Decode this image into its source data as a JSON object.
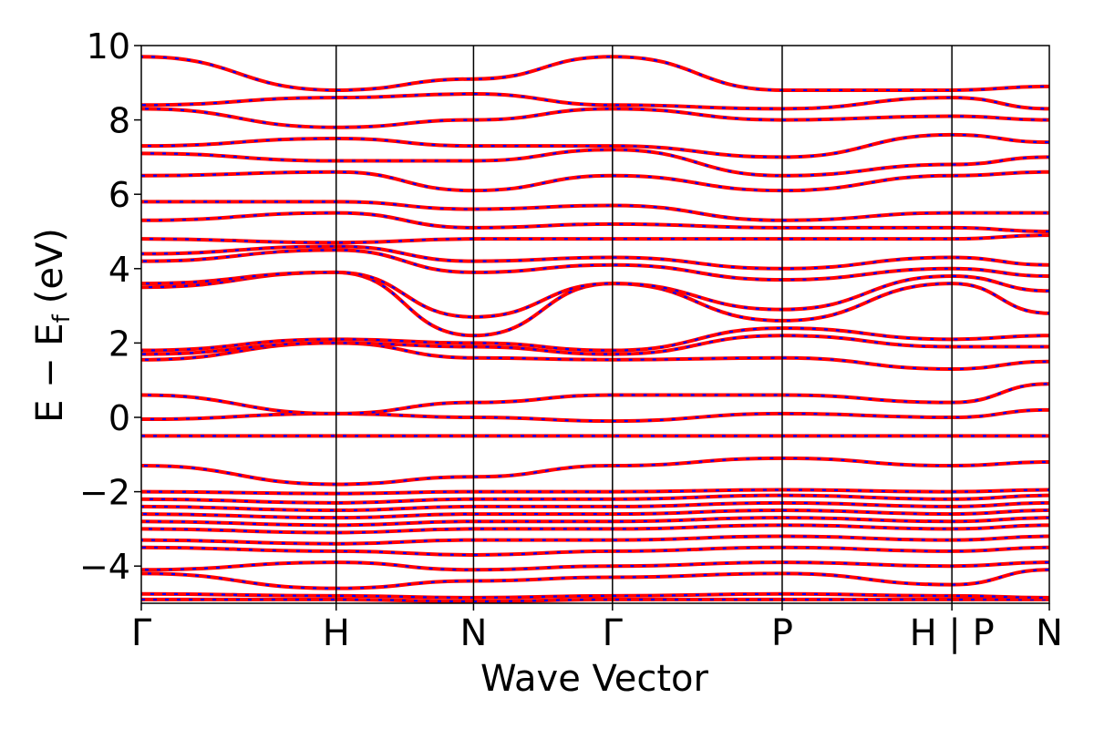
{
  "chart_data": {
    "type": "line",
    "title": "",
    "xlabel": "Wave Vector",
    "ylabel": {
      "main": "E − E",
      "sub": "f",
      "unit": "(eV)"
    },
    "ylim": [
      -5,
      10
    ],
    "yticks": [
      -4,
      -2,
      0,
      2,
      4,
      6,
      8,
      10
    ],
    "ytick_labels": [
      "−4",
      "−2",
      "0",
      "2",
      "4",
      "6",
      "8",
      "10"
    ],
    "segment_length_ratios": [
      1.0,
      0.705,
      0.713,
      0.871,
      0.871,
      0.5
    ],
    "kpoints": [
      {
        "label": "Γ",
        "pos": 0.0
      },
      {
        "label": "H",
        "pos": 1.0
      },
      {
        "label": "N",
        "pos": 1.705
      },
      {
        "label": "Γ",
        "pos": 2.418
      },
      {
        "label": "P",
        "pos": 3.289
      },
      {
        "label": "H | P",
        "pos": 4.16
      },
      {
        "label": "N",
        "pos": 4.66
      }
    ],
    "series_colors": {
      "band_line": "#ff0000",
      "band_dash": "#0000ff"
    },
    "bands": [
      {
        "name": "b01",
        "energies": [
          -4.9,
          -4.9,
          -4.95,
          -4.9,
          -4.9,
          -4.9,
          -4.9
        ]
      },
      {
        "name": "b02",
        "energies": [
          -4.75,
          -4.8,
          -4.85,
          -4.8,
          -4.75,
          -4.8,
          -4.85
        ]
      },
      {
        "name": "b03",
        "energies": [
          -4.2,
          -4.6,
          -4.4,
          -4.3,
          -4.2,
          -4.5,
          -4.1
        ]
      },
      {
        "name": "b04",
        "energies": [
          -4.1,
          -3.9,
          -4.1,
          -4.0,
          -3.9,
          -4.0,
          -3.9
        ]
      },
      {
        "name": "b05",
        "energies": [
          -3.5,
          -3.6,
          -3.7,
          -3.6,
          -3.5,
          -3.6,
          -3.5
        ]
      },
      {
        "name": "b06",
        "energies": [
          -3.3,
          -3.4,
          -3.3,
          -3.3,
          -3.2,
          -3.3,
          -3.2
        ]
      },
      {
        "name": "b07",
        "energies": [
          -3.0,
          -3.1,
          -3.0,
          -3.0,
          -2.9,
          -3.0,
          -2.9
        ]
      },
      {
        "name": "b08",
        "energies": [
          -2.8,
          -2.9,
          -2.8,
          -2.8,
          -2.7,
          -2.8,
          -2.7
        ]
      },
      {
        "name": "b09",
        "energies": [
          -2.6,
          -2.7,
          -2.6,
          -2.6,
          -2.5,
          -2.6,
          -2.5
        ]
      },
      {
        "name": "b10",
        "energies": [
          -2.4,
          -2.5,
          -2.4,
          -2.4,
          -2.3,
          -2.4,
          -2.3
        ]
      },
      {
        "name": "b11",
        "energies": [
          -2.2,
          -2.3,
          -2.2,
          -2.2,
          -2.1,
          -2.2,
          -2.1
        ]
      },
      {
        "name": "b12",
        "energies": [
          -2.0,
          -2.05,
          -2.0,
          -2.0,
          -1.95,
          -2.0,
          -1.95
        ]
      },
      {
        "name": "b13",
        "energies": [
          -1.3,
          -1.8,
          -1.6,
          -1.3,
          -1.1,
          -1.3,
          -1.2
        ]
      },
      {
        "name": "b14",
        "energies": [
          -0.5,
          -0.5,
          -0.5,
          -0.5,
          -0.5,
          -0.5,
          -0.5
        ]
      },
      {
        "name": "b15",
        "energies": [
          -0.05,
          0.1,
          0.0,
          -0.1,
          0.1,
          0.0,
          0.2
        ]
      },
      {
        "name": "b16",
        "energies": [
          0.6,
          0.1,
          0.4,
          0.6,
          0.6,
          0.4,
          0.9
        ]
      },
      {
        "name": "b17",
        "energies": [
          1.55,
          2.0,
          1.6,
          1.55,
          1.6,
          1.3,
          1.5
        ]
      },
      {
        "name": "b18",
        "energies": [
          1.7,
          2.0,
          1.9,
          1.7,
          2.2,
          1.9,
          1.9
        ]
      },
      {
        "name": "b19",
        "energies": [
          1.8,
          2.1,
          2.0,
          1.8,
          2.4,
          2.1,
          2.2
        ]
      },
      {
        "name": "b20",
        "energies": [
          3.5,
          3.9,
          2.2,
          3.6,
          2.6,
          3.6,
          2.8
        ]
      },
      {
        "name": "b21",
        "energies": [
          3.6,
          3.9,
          2.7,
          3.6,
          2.9,
          3.8,
          3.4
        ]
      },
      {
        "name": "b22",
        "energies": [
          4.2,
          4.5,
          3.9,
          4.1,
          3.7,
          4.0,
          3.8
        ]
      },
      {
        "name": "b23",
        "energies": [
          4.4,
          4.6,
          4.2,
          4.3,
          4.0,
          4.3,
          4.1
        ]
      },
      {
        "name": "b24",
        "energies": [
          4.8,
          4.7,
          4.8,
          4.8,
          4.8,
          4.8,
          4.9
        ]
      },
      {
        "name": "b25",
        "energies": [
          5.3,
          5.5,
          5.1,
          5.2,
          5.1,
          5.1,
          5.0
        ]
      },
      {
        "name": "b26",
        "energies": [
          5.8,
          5.8,
          5.6,
          5.7,
          5.3,
          5.5,
          5.5
        ]
      },
      {
        "name": "b27",
        "energies": [
          6.5,
          6.6,
          6.1,
          6.5,
          6.1,
          6.5,
          6.6
        ]
      },
      {
        "name": "b28",
        "energies": [
          7.1,
          6.9,
          6.9,
          7.2,
          6.5,
          6.8,
          7.0
        ]
      },
      {
        "name": "b29",
        "energies": [
          7.3,
          7.5,
          7.3,
          7.3,
          7.0,
          7.6,
          7.4
        ]
      },
      {
        "name": "b30",
        "energies": [
          8.3,
          7.8,
          8.0,
          8.3,
          8.0,
          8.1,
          8.0
        ]
      },
      {
        "name": "b31",
        "energies": [
          8.4,
          8.6,
          8.7,
          8.4,
          8.3,
          8.6,
          8.3
        ]
      },
      {
        "name": "b32",
        "energies": [
          9.7,
          8.8,
          9.1,
          9.7,
          8.8,
          8.8,
          8.9
        ]
      }
    ]
  }
}
